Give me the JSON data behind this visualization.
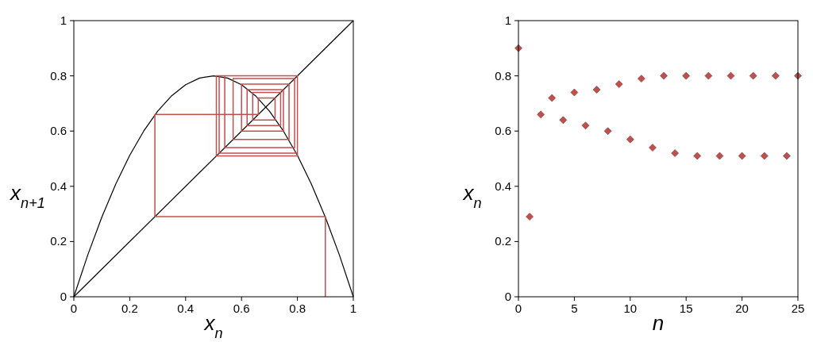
{
  "chart_data": [
    {
      "type": "line",
      "xlabel": "x$_{n}$",
      "ylabel": "x$_{n+1}$",
      "xlim": [
        0,
        1
      ],
      "ylim": [
        0,
        1
      ],
      "xticks": [
        0,
        0.2,
        0.4,
        0.6,
        0.8,
        1
      ],
      "yticks": [
        0,
        0.2,
        0.4,
        0.6,
        0.8,
        1
      ],
      "grid": false,
      "series": [
        {
          "color": "#000000",
          "x": [
            0,
            0.05,
            0.1,
            0.15,
            0.2,
            0.25,
            0.3,
            0.35,
            0.4,
            0.45,
            0.5,
            0.55,
            0.6,
            0.65,
            0.7,
            0.75,
            0.8,
            0.85,
            0.9,
            0.95,
            1
          ],
          "values": [
            0,
            0.152,
            0.288,
            0.408,
            0.512,
            0.6,
            0.672,
            0.728,
            0.768,
            0.792,
            0.8,
            0.792,
            0.768,
            0.728,
            0.672,
            0.6,
            0.512,
            0.408,
            0.288,
            0.152,
            0
          ]
        },
        {
          "color": "#000000",
          "x": [
            0,
            1
          ],
          "values": [
            0,
            1
          ]
        },
        {
          "color": "#c0504d",
          "x": [
            0.9,
            0.9,
            0.29,
            0.29,
            0.66,
            0.66,
            0.72,
            0.72,
            0.64,
            0.64,
            0.74,
            0.74,
            0.62,
            0.62,
            0.75,
            0.75,
            0.6,
            0.6,
            0.77,
            0.77,
            0.57,
            0.57,
            0.79,
            0.79,
            0.54,
            0.54,
            0.8,
            0.8,
            0.52,
            0.52,
            0.8,
            0.8,
            0.51,
            0.51,
            0.8,
            0.8,
            0.51,
            0.51,
            0.8,
            0.8,
            0.51,
            0.51,
            0.8,
            0.8,
            0.51,
            0.51,
            0.8,
            0.8,
            0.51,
            0.51,
            0.8
          ],
          "values": [
            0,
            0.29,
            0.29,
            0.66,
            0.66,
            0.72,
            0.72,
            0.64,
            0.64,
            0.74,
            0.74,
            0.62,
            0.62,
            0.75,
            0.75,
            0.6,
            0.6,
            0.77,
            0.77,
            0.57,
            0.57,
            0.79,
            0.79,
            0.54,
            0.54,
            0.8,
            0.8,
            0.52,
            0.52,
            0.8,
            0.8,
            0.51,
            0.51,
            0.8,
            0.8,
            0.51,
            0.51,
            0.8,
            0.8,
            0.51,
            0.51,
            0.8,
            0.8,
            0.51,
            0.51,
            0.8,
            0.8,
            0.51,
            0.51,
            0.8,
            0.8
          ]
        }
      ]
    },
    {
      "type": "scatter",
      "xlabel": "n",
      "ylabel": "x$_{n}$",
      "xlim": [
        0,
        25
      ],
      "ylim": [
        0,
        1
      ],
      "xticks": [
        0,
        5,
        10,
        15,
        20,
        25
      ],
      "yticks": [
        0,
        0.2,
        0.4,
        0.6,
        0.8,
        1
      ],
      "grid": false,
      "marker": "diamond",
      "x": [
        0,
        1,
        2,
        3,
        4,
        5,
        6,
        7,
        8,
        9,
        10,
        11,
        12,
        13,
        14,
        15,
        16,
        17,
        18,
        19,
        20,
        21,
        22,
        23,
        24,
        25
      ],
      "series": [
        {
          "color": "#c0504d",
          "values": [
            0.9,
            0.29,
            0.66,
            0.72,
            0.64,
            0.74,
            0.62,
            0.75,
            0.6,
            0.77,
            0.57,
            0.79,
            0.54,
            0.8,
            0.52,
            0.8,
            0.51,
            0.8,
            0.51,
            0.8,
            0.51,
            0.8,
            0.51,
            0.8,
            0.51,
            0.8
          ]
        }
      ]
    }
  ]
}
